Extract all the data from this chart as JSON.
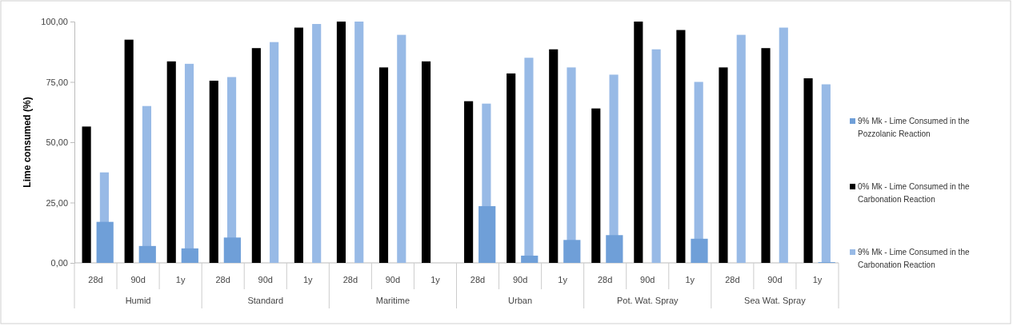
{
  "chart_data": {
    "type": "bar",
    "ylabel": "Lime consumed (%)",
    "categories": [
      "28d",
      "90d",
      "1y",
      "28d",
      "90d",
      "1y",
      "28d",
      "90d",
      "1y",
      "28d",
      "90d",
      "1y",
      "28d",
      "90d",
      "1y",
      "28d",
      "90d",
      "1y"
    ],
    "annotations": [
      "Humid",
      "Standard",
      "Maritime",
      "Urban",
      "Pot. Wat. Spray",
      "Sea Wat. Spray"
    ],
    "series": [
      {
        "name": "9% Mk - Lime Consumed in the Pozzolanic Reaction",
        "color": "#6f9fd8",
        "values": [
          17,
          7,
          6,
          10.5,
          null,
          null,
          null,
          null,
          null,
          23.5,
          3,
          9.5,
          11.5,
          null,
          10,
          null,
          null,
          0.3
        ]
      },
      {
        "name": "0% Mk - Lime Consumed in the Carbonation Reaction",
        "color": "#000000",
        "values": [
          56.5,
          92.5,
          83.5,
          75.5,
          89,
          97.5,
          100,
          81,
          83.5,
          67,
          78.5,
          88.5,
          64,
          100,
          96.5,
          81,
          89,
          76.5
        ]
      },
      {
        "name": "9% Mk - Lime Consumed in the Carbonation Reaction",
        "color": "#98bae6",
        "values": [
          37.5,
          65,
          82.5,
          77,
          91.5,
          99,
          100,
          94.5,
          null,
          66,
          85,
          81,
          78,
          88.5,
          75,
          94.5,
          97.5,
          74
        ]
      }
    ],
    "ylim": [
      0,
      100
    ],
    "yticks": [
      {
        "value": 0,
        "label": "0,00"
      },
      {
        "value": 25,
        "label": "25,00"
      },
      {
        "value": 50,
        "label": "50,00"
      },
      {
        "value": 75,
        "label": "75,00"
      },
      {
        "value": 100,
        "label": "100,00"
      }
    ],
    "grid": false,
    "legend": "right"
  }
}
